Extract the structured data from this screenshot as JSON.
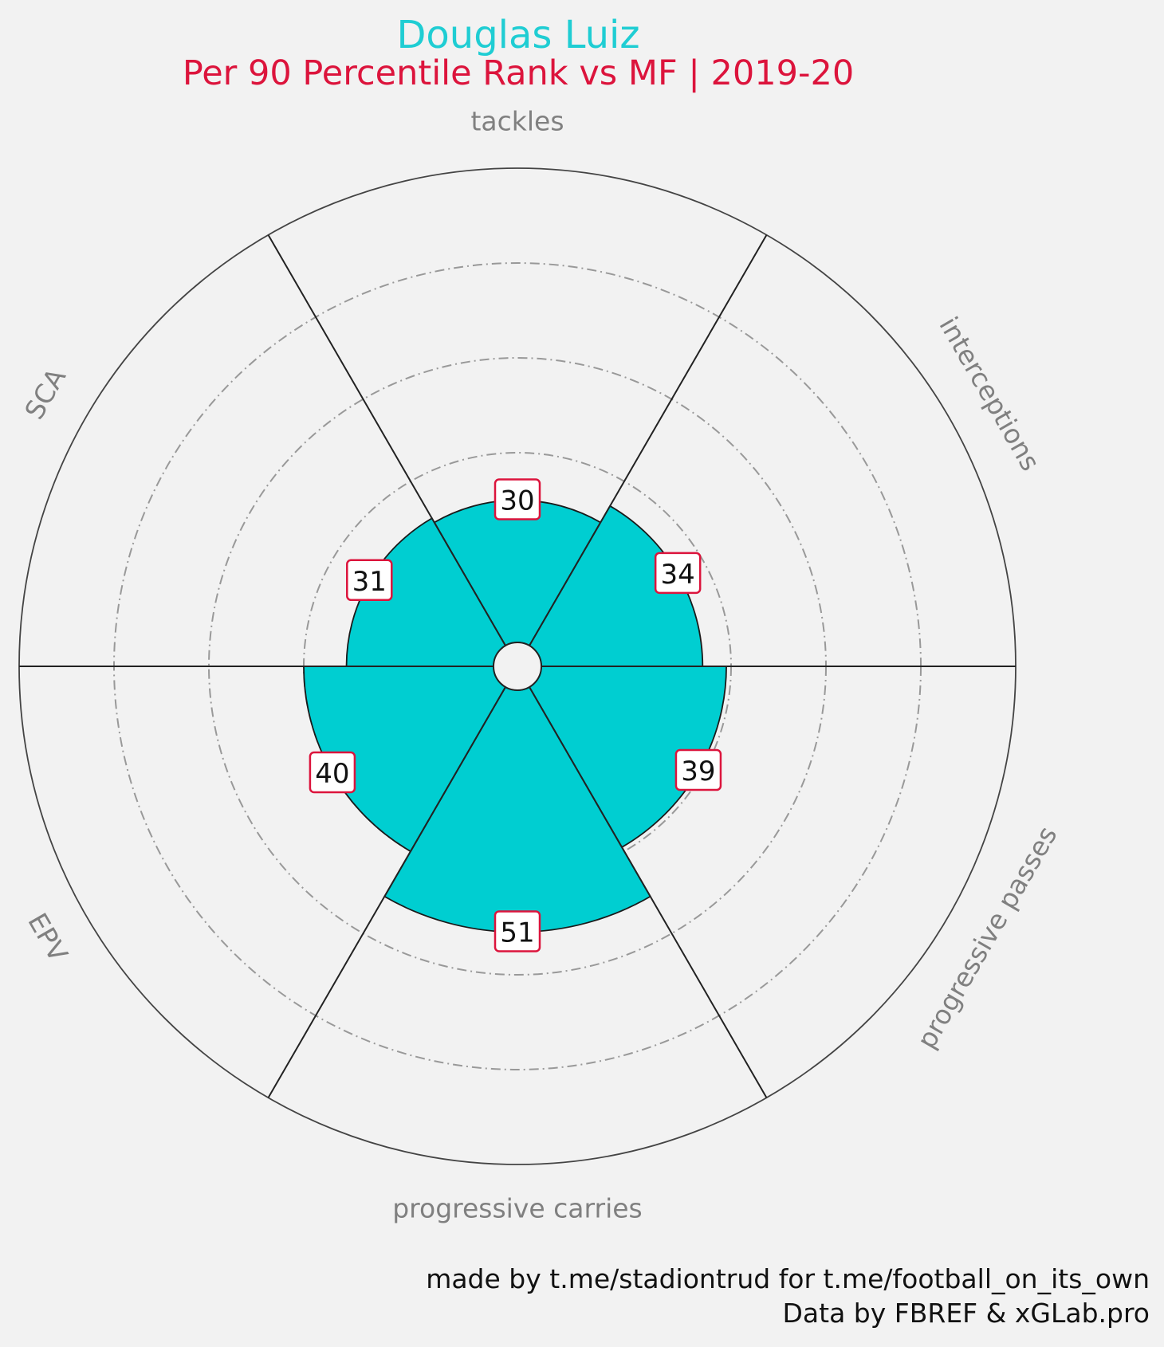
{
  "chart_data": {
    "type": "radial-bar",
    "title": "Douglas Luiz",
    "subtitle": "Per 90 Percentile Rank vs MF | 2019-20",
    "categories": [
      "tackles",
      "interceptions",
      "progressive passes",
      "progressive carries",
      "EPV",
      "SCA"
    ],
    "values": [
      30,
      34,
      39,
      51,
      40,
      31
    ],
    "rlim": [
      0,
      100
    ],
    "gridlines": [
      20,
      40,
      60,
      80
    ],
    "colors": {
      "title": "#1fcdd3",
      "subtitle": "#dc143c",
      "fill": "#00ced1",
      "label_border": "#dc143c",
      "category_label": "#808080",
      "background": "#f2f2f2"
    }
  },
  "credits": {
    "line1": "made by t.me/stadiontrud for t.me/football_on_its_own",
    "line2": "Data by FBREF & xGLab.pro"
  }
}
